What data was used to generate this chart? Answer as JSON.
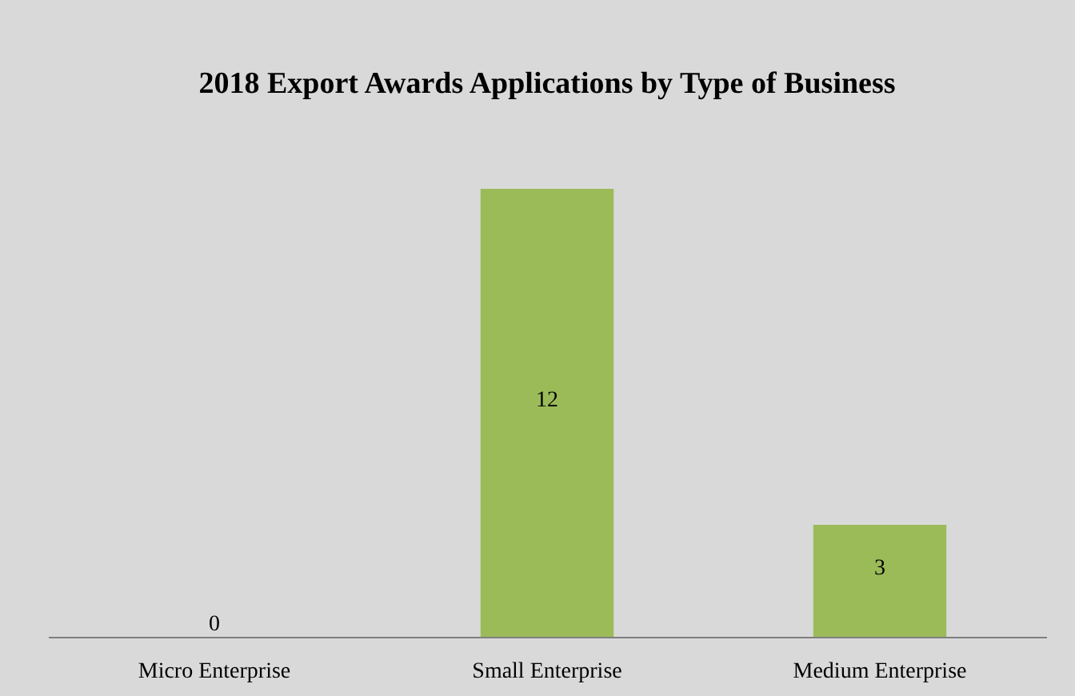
{
  "chart_data": {
    "type": "bar",
    "title": "2018 Export Awards Applications by Type of Business",
    "categories": [
      "Micro Enterprise",
      "Small Enterprise",
      "Medium Enterprise"
    ],
    "values": [
      0,
      12,
      3
    ],
    "color": "#9bbb59",
    "data_labels": true
  }
}
